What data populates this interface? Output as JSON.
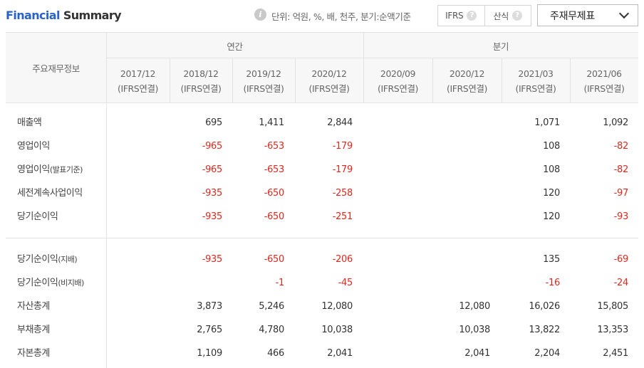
{
  "header": {
    "title_part1": "Financial",
    "title_part2": "Summary",
    "info_icon": "i",
    "unit_text": "단위: 억원, %, 배, 천주, 분기:순액기준",
    "toggle": [
      {
        "label": "IFRS",
        "help": "?"
      },
      {
        "label": "산식",
        "help": "?"
      }
    ],
    "select_value": "주재무제표"
  },
  "table": {
    "item_header": "주요재무정보",
    "group_annual": "연간",
    "group_quarter": "분기",
    "periods": [
      {
        "date": "2017/12",
        "basis": "(IFRS연결)"
      },
      {
        "date": "2018/12",
        "basis": "(IFRS연결)"
      },
      {
        "date": "2019/12",
        "basis": "(IFRS연결)"
      },
      {
        "date": "2020/12",
        "basis": "(IFRS연결)"
      },
      {
        "date": "2020/09",
        "basis": "(IFRS연결)"
      },
      {
        "date": "2020/12",
        "basis": "(IFRS연결)"
      },
      {
        "date": "2021/03",
        "basis": "(IFRS연결)"
      },
      {
        "date": "2021/06",
        "basis": "(IFRS연결)"
      }
    ],
    "rows": [
      {
        "label": "매출액",
        "suffix": "",
        "values": [
          "",
          "695",
          "1,411",
          "2,844",
          "",
          "",
          "1,071",
          "1,092"
        ]
      },
      {
        "label": "영업이익",
        "suffix": "",
        "values": [
          "",
          "-965",
          "-653",
          "-179",
          "",
          "",
          "108",
          "-82"
        ]
      },
      {
        "label": "영업이익",
        "suffix": "(발표기준)",
        "values": [
          "",
          "-965",
          "-653",
          "-179",
          "",
          "",
          "108",
          "-82"
        ]
      },
      {
        "label": "세전계속사업이익",
        "suffix": "",
        "values": [
          "",
          "-935",
          "-650",
          "-258",
          "",
          "",
          "120",
          "-97"
        ]
      },
      {
        "label": "당기순이익",
        "suffix": "",
        "values": [
          "",
          "-935",
          "-650",
          "-251",
          "",
          "",
          "120",
          "-93"
        ]
      },
      {
        "label": "당기순이익",
        "suffix": "(지배)",
        "values": [
          "",
          "-935",
          "-650",
          "-206",
          "",
          "",
          "135",
          "-69"
        ]
      },
      {
        "label": "당기순이익",
        "suffix": "(비지배)",
        "values": [
          "",
          "",
          "-1",
          "-45",
          "",
          "",
          "-16",
          "-24"
        ]
      },
      {
        "label": "자산총계",
        "suffix": "",
        "values": [
          "",
          "3,873",
          "5,246",
          "12,080",
          "",
          "12,080",
          "16,026",
          "15,805"
        ]
      },
      {
        "label": "부채총계",
        "suffix": "",
        "values": [
          "",
          "2,765",
          "4,780",
          "10,038",
          "",
          "10,038",
          "13,822",
          "13,353"
        ]
      },
      {
        "label": "자본총계",
        "suffix": "",
        "values": [
          "",
          "1,109",
          "466",
          "2,041",
          "",
          "2,041",
          "2,204",
          "2,451"
        ]
      }
    ]
  }
}
